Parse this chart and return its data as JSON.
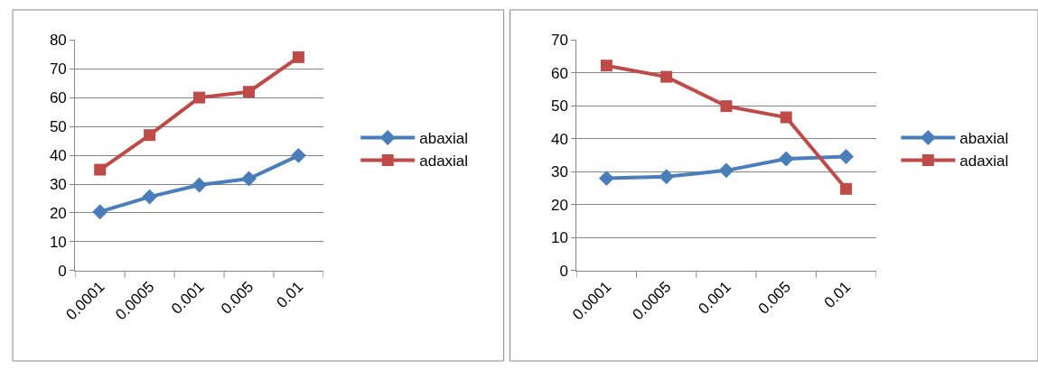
{
  "chart_data": [
    {
      "type": "line",
      "categories": [
        "0.0001",
        "0.0005",
        "0.001",
        "0.005",
        "0.01"
      ],
      "ylim": [
        0,
        80
      ],
      "yticks": [
        0,
        10,
        20,
        30,
        40,
        50,
        60,
        70,
        80
      ],
      "grid": "y",
      "legend": "right",
      "series": [
        {
          "name": "abaxial",
          "color": "#4a7ebb",
          "marker": "diamond",
          "values": [
            20.4,
            25.6,
            29.7,
            31.9,
            39.9
          ]
        },
        {
          "name": "adaxial",
          "color": "#be4b48",
          "marker": "square",
          "values": [
            35,
            47,
            60,
            62,
            74
          ]
        }
      ]
    },
    {
      "type": "line",
      "categories": [
        "0.0001",
        "0.0005",
        "0.001",
        "0.005",
        "0.01"
      ],
      "ylim": [
        0,
        70
      ],
      "yticks": [
        0,
        10,
        20,
        30,
        40,
        50,
        60,
        70
      ],
      "grid": "y",
      "legend": "right",
      "series": [
        {
          "name": "abaxial",
          "color": "#4a7ebb",
          "marker": "diamond",
          "values": [
            28,
            28.5,
            30.4,
            33.9,
            34.6
          ]
        },
        {
          "name": "adaxial",
          "color": "#be4b48",
          "marker": "square",
          "values": [
            62.2,
            58.8,
            49.9,
            46.5,
            24.8
          ]
        }
      ]
    }
  ]
}
